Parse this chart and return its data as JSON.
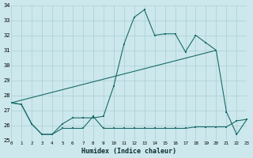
{
  "xlabel": "Humidex (Indice chaleur)",
  "bg_color": "#cce8ec",
  "grid_color": "#aacdd4",
  "line_color": "#1a6b6b",
  "x": [
    0,
    1,
    2,
    3,
    4,
    5,
    6,
    7,
    8,
    9,
    10,
    11,
    12,
    13,
    14,
    15,
    16,
    17,
    18,
    19,
    20,
    21,
    22,
    23
  ],
  "main_line": [
    27.5,
    27.4,
    26.1,
    25.4,
    25.4,
    26.1,
    26.5,
    26.5,
    26.5,
    26.6,
    28.6,
    31.4,
    33.2,
    33.7,
    32.0,
    32.1,
    32.1,
    30.9,
    32.0,
    31.5,
    31.0,
    26.9,
    25.4,
    26.4
  ],
  "bottom_line": [
    27.5,
    27.4,
    26.1,
    25.4,
    25.4,
    25.8,
    25.8,
    25.8,
    26.6,
    25.8,
    25.8,
    25.8,
    25.8,
    25.8,
    25.8,
    25.8,
    25.8,
    25.8,
    25.9,
    25.9,
    25.9,
    25.9,
    26.3,
    26.4
  ],
  "trend_line_x": [
    0,
    20
  ],
  "trend_line_y": [
    27.5,
    31.0
  ],
  "ylim": [
    25,
    34
  ],
  "xlim": [
    0,
    23
  ],
  "yticks": [
    25,
    26,
    27,
    28,
    29,
    30,
    31,
    32,
    33,
    34
  ],
  "xticks": [
    0,
    1,
    2,
    3,
    4,
    5,
    6,
    7,
    8,
    9,
    10,
    11,
    12,
    13,
    14,
    15,
    16,
    17,
    18,
    19,
    20,
    21,
    22,
    23
  ]
}
